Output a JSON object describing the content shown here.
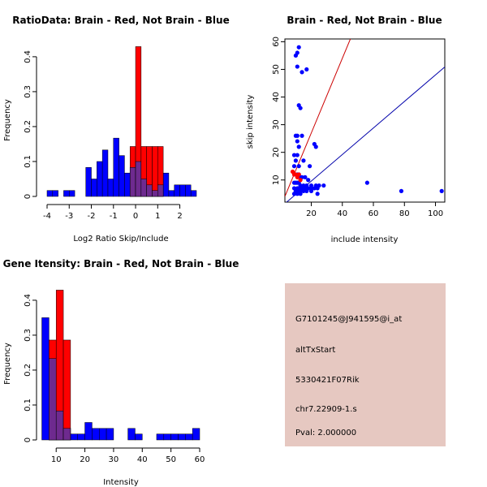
{
  "chart_data": [
    {
      "id": "ratio",
      "type": "bar",
      "title": "RatioData: Brain - Red, Not Brain - Blue",
      "xlabel": "Log2 Ratio Skip/Include",
      "ylabel": "Frequency",
      "xlim": [
        -4,
        2.75
      ],
      "ylim": [
        0,
        0.43
      ],
      "xticks": [
        -4,
        -3,
        -2,
        -1,
        0,
        1,
        2
      ],
      "yticks": [
        0,
        0.1,
        0.2,
        0.3,
        0.4
      ],
      "bin_width": 0.25,
      "series": [
        {
          "name": "Not Brain",
          "color": "#0000ff",
          "x0": [
            -4,
            -3.75,
            -3.25,
            -3,
            -2.25,
            -2,
            -1.75,
            -1.5,
            -1.25,
            -1,
            -0.75,
            -0.5,
            -0.25,
            0,
            0.25,
            0.5,
            0.75,
            1,
            1.25,
            1.5,
            1.75,
            2,
            2.25,
            2.5
          ],
          "values": [
            0.017,
            0.017,
            0.017,
            0.017,
            0.083,
            0.05,
            0.1,
            0.133,
            0.05,
            0.167,
            0.117,
            0.067,
            0.083,
            0.1,
            0.05,
            0.033,
            0.017,
            0.033,
            0.067,
            0.017,
            0.033,
            0.033,
            0.033,
            0.017
          ]
        },
        {
          "name": "Brain",
          "color": "#ff0000",
          "x0": [
            -0.25,
            0,
            0.25,
            0.5,
            0.75,
            1
          ],
          "values": [
            0.143,
            0.429,
            0.143,
            0.143,
            0.143,
            0.143
          ]
        }
      ]
    },
    {
      "id": "scatter",
      "type": "scatter",
      "title": "Brain - Red, Not Brain - Blue",
      "xlabel": "include intensity",
      "ylabel": "skip intensity",
      "xlim": [
        3,
        106
      ],
      "ylim": [
        2,
        61
      ],
      "xticks": [
        20,
        40,
        60,
        80,
        100
      ],
      "yticks": [
        10,
        20,
        30,
        40,
        50,
        60
      ],
      "lines": [
        {
          "name": "red line",
          "color": "#cc0000",
          "slope": 1.35,
          "intercept": 0
        },
        {
          "name": "blue line",
          "color": "#0000aa",
          "slope": 0.48,
          "intercept": 0
        }
      ],
      "series": [
        {
          "name": "Not Brain",
          "color": "#0000ff",
          "points": [
            [
              12,
              58
            ],
            [
              10,
              55
            ],
            [
              11,
              56
            ],
            [
              14,
              49
            ],
            [
              17,
              50
            ],
            [
              11,
              51
            ],
            [
              12,
              37
            ],
            [
              13,
              36
            ],
            [
              10,
              26
            ],
            [
              11,
              26
            ],
            [
              14,
              26
            ],
            [
              11,
              24
            ],
            [
              12,
              22
            ],
            [
              22,
              23
            ],
            [
              23,
              22
            ],
            [
              9,
              19
            ],
            [
              11,
              19
            ],
            [
              10,
              17
            ],
            [
              15,
              17
            ],
            [
              9,
              15
            ],
            [
              12,
              15
            ],
            [
              19,
              15
            ],
            [
              9,
              12
            ],
            [
              11,
              12
            ],
            [
              12,
              12
            ],
            [
              13,
              11
            ],
            [
              14,
              11
            ],
            [
              16,
              11
            ],
            [
              18,
              10
            ],
            [
              9,
              9
            ],
            [
              10,
              9
            ],
            [
              11,
              9
            ],
            [
              12,
              9
            ],
            [
              13,
              8
            ],
            [
              15,
              8
            ],
            [
              17,
              8
            ],
            [
              20,
              8
            ],
            [
              23,
              8
            ],
            [
              25,
              8
            ],
            [
              28,
              8
            ],
            [
              9,
              7
            ],
            [
              11,
              7
            ],
            [
              12,
              7
            ],
            [
              13,
              7
            ],
            [
              15,
              7
            ],
            [
              16,
              7
            ],
            [
              18,
              7
            ],
            [
              20,
              7
            ],
            [
              22,
              7
            ],
            [
              24,
              7
            ],
            [
              10,
              6
            ],
            [
              12,
              6
            ],
            [
              13,
              6
            ],
            [
              15,
              6
            ],
            [
              17,
              6
            ],
            [
              20,
              6
            ],
            [
              9,
              5
            ],
            [
              11,
              5
            ],
            [
              13,
              5
            ],
            [
              24,
              5
            ],
            [
              56,
              9
            ],
            [
              78,
              6
            ],
            [
              104,
              6
            ]
          ]
        },
        {
          "name": "Brain",
          "color": "#ff0000",
          "points": [
            [
              8,
              13
            ],
            [
              9,
              12
            ],
            [
              10,
              12
            ],
            [
              11,
              11
            ],
            [
              12,
              12
            ],
            [
              13,
              10
            ]
          ]
        }
      ]
    },
    {
      "id": "intensity",
      "type": "bar",
      "title": "Gene Itensity: Brain - Red, Not Brain - Blue",
      "xlabel": "Intensity",
      "ylabel": "Frequency",
      "xlim": [
        4,
        60
      ],
      "ylim": [
        0,
        0.43
      ],
      "xticks": [
        10,
        20,
        30,
        40,
        50,
        60
      ],
      "yticks": [
        0,
        0.1,
        0.2,
        0.3,
        0.4
      ],
      "bin_width": 2.5,
      "series": [
        {
          "name": "Not Brain",
          "color": "#0000ff",
          "x0": [
            5,
            7.5,
            10,
            12.5,
            15,
            17.5,
            20,
            22.5,
            25,
            27.5,
            35,
            37.5,
            45,
            47.5,
            50,
            52.5,
            55,
            57.5
          ],
          "values": [
            0.35,
            0.233,
            0.083,
            0.033,
            0.017,
            0.017,
            0.05,
            0.033,
            0.033,
            0.033,
            0.033,
            0.017,
            0.017,
            0.017,
            0.017,
            0.017,
            0.017,
            0.033
          ]
        },
        {
          "name": "Brain",
          "color": "#ff0000",
          "x0": [
            7.5,
            10,
            12.5
          ],
          "values": [
            0.286,
            0.429,
            0.286
          ]
        }
      ]
    }
  ],
  "info_panel": {
    "background": "#e6c8c1",
    "probe_id": "G7101245@J941595@i_at",
    "event_type": "altTxStart",
    "gene": "5330421F07Rik",
    "location": "chr7.22909-1.s",
    "pval": "Pval: 2.000000",
    "pval_color": "#aa0000"
  }
}
